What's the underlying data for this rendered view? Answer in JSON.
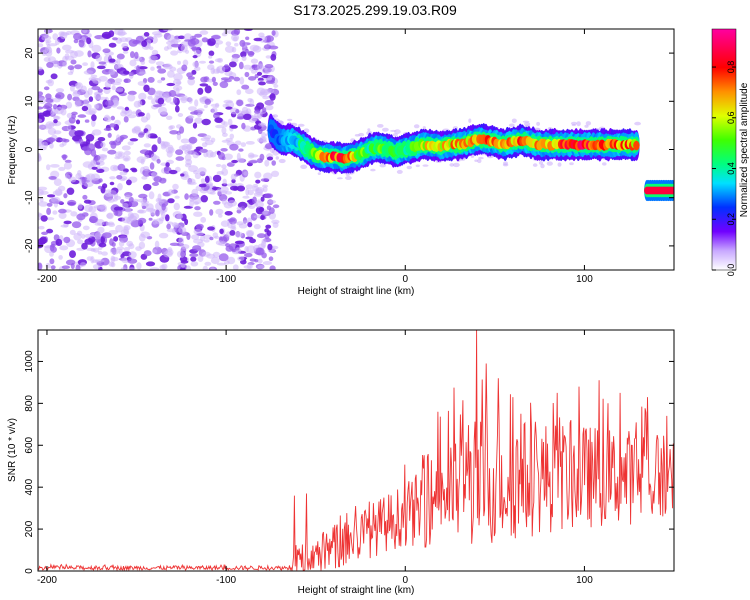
{
  "title": "S173.2025.299.19.03.R09",
  "chart_data": [
    {
      "type": "heatmap",
      "description": "Spectrogram of frequency vs height of straight line",
      "xlabel": "Height of straight line (km)",
      "ylabel": "Frequency (Hz)",
      "xlim": [
        -205,
        150
      ],
      "ylim": [
        -25,
        25
      ],
      "xticks": [
        -200,
        -100,
        0,
        100
      ],
      "yticks": [
        -20,
        -10,
        0,
        10,
        20
      ],
      "colorbar": {
        "label": "Normalized spectral amplitude",
        "range": [
          0.0,
          0.95
        ],
        "ticks": [
          0.0,
          0.2,
          0.4,
          0.6,
          0.8
        ],
        "tick_labels": [
          "0.0",
          "0.2",
          "0.4",
          "0.6",
          "0.8"
        ]
      },
      "noise_region_x": [
        -205,
        -72
      ],
      "signal_track": {
        "x": [
          -75,
          -70,
          -65,
          -60,
          -55,
          -50,
          -45,
          -40,
          -35,
          -30,
          -25,
          -20,
          -15,
          -10,
          -5,
          0,
          5,
          10,
          15,
          20,
          25,
          30,
          35,
          40,
          45,
          50,
          55,
          60,
          65,
          70,
          75,
          80,
          85,
          90,
          95,
          100,
          105,
          110,
          115,
          120,
          125,
          130
        ],
        "y": [
          4,
          2,
          2,
          1.5,
          0,
          -1,
          -1.5,
          -1.5,
          -2,
          -1.5,
          -1,
          0,
          0.5,
          0,
          -0.5,
          0,
          0.5,
          1,
          1,
          0.5,
          1,
          1,
          1.5,
          2,
          2,
          1.5,
          1,
          1.5,
          2,
          1.5,
          1,
          1,
          1,
          1,
          1,
          1,
          1,
          1,
          1,
          1,
          1,
          1
        ],
        "amplitude": [
          0.3,
          0.3,
          0.35,
          0.4,
          0.55,
          0.7,
          0.8,
          0.9,
          0.95,
          0.85,
          0.6,
          0.5,
          0.55,
          0.6,
          0.55,
          0.5,
          0.6,
          0.7,
          0.75,
          0.7,
          0.75,
          0.8,
          0.75,
          0.8,
          0.85,
          0.8,
          0.75,
          0.8,
          0.85,
          0.8,
          0.75,
          0.8,
          0.85,
          0.9,
          0.85,
          0.95,
          0.9,
          0.85,
          0.8,
          0.85,
          0.8,
          0.75
        ]
      },
      "secondary_track": {
        "x": [
          135,
          150
        ],
        "y": [
          -8.5,
          -8.5
        ],
        "amplitude": [
          0.9,
          0.9
        ]
      }
    },
    {
      "type": "line",
      "xlabel": "Height of straight line (km)",
      "ylabel": "SNR (10 * v/v)",
      "xlim": [
        -205,
        150
      ],
      "ylim": [
        0,
        1150
      ],
      "xticks": [
        -200,
        -100,
        0,
        100
      ],
      "yticks": [
        0,
        200,
        400,
        600,
        800,
        1000
      ],
      "color": "#ee3333",
      "envelope": {
        "x": [
          -205,
          -65,
          -60,
          -50,
          -40,
          -30,
          -20,
          -10,
          0,
          10,
          20,
          30,
          40,
          50,
          60,
          70,
          80,
          90,
          100,
          110,
          120,
          130,
          140,
          150
        ],
        "base": [
          15,
          15,
          40,
          70,
          110,
          150,
          190,
          230,
          270,
          300,
          380,
          400,
          420,
          430,
          440,
          440,
          450,
          450,
          450,
          450,
          450,
          450,
          450,
          460
        ],
        "spread": [
          10,
          10,
          80,
          100,
          110,
          120,
          130,
          140,
          150,
          190,
          250,
          280,
          320,
          310,
          300,
          280,
          270,
          260,
          250,
          240,
          230,
          230,
          220,
          220
        ]
      },
      "peaks": [
        {
          "x": -62,
          "y": 360
        },
        {
          "x": -55,
          "y": 370
        },
        {
          "x": 18,
          "y": 760
        },
        {
          "x": 27,
          "y": 875
        },
        {
          "x": 32,
          "y": 815
        },
        {
          "x": 40,
          "y": 1150
        },
        {
          "x": 45,
          "y": 990
        },
        {
          "x": 52,
          "y": 920
        },
        {
          "x": 60,
          "y": 830
        },
        {
          "x": 85,
          "y": 850
        },
        {
          "x": 97,
          "y": 880
        },
        {
          "x": 108,
          "y": 910
        },
        {
          "x": 120,
          "y": 850
        },
        {
          "x": 135,
          "y": 830
        },
        {
          "x": 146,
          "y": 740
        }
      ]
    }
  ]
}
